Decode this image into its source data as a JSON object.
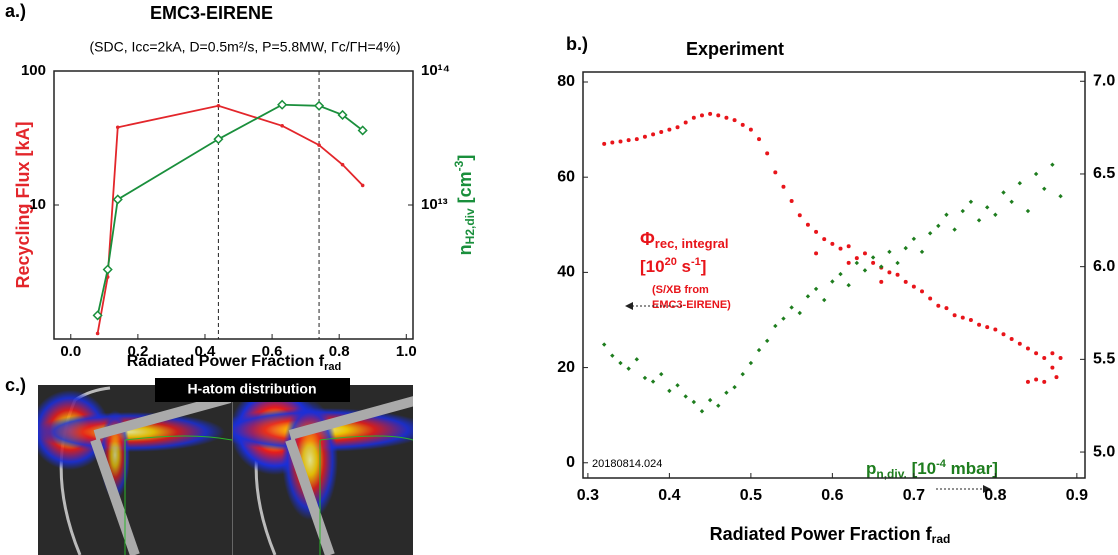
{
  "chart_data": [
    {
      "type": "line",
      "panel": "a.)",
      "title": "EMC3-EIRENE",
      "subtitle": "(SDC, Icc=2kA, D=0.5m²/s, P=5.8MW, Γc/ΓH=4%)",
      "xlabel": [
        "Radiated Power Fraction f",
        "rad"
      ],
      "ylabel": "Recycling Flux [kA]",
      "y2label": [
        "n",
        "H2,div",
        " [cm",
        "-3",
        "]"
      ],
      "x": [
        0.08,
        0.11,
        0.14,
        0.44,
        0.63,
        0.74,
        0.81,
        0.87
      ],
      "series": [
        {
          "color": "#e3262b",
          "marker": "circle",
          "values": [
            1.1,
            2.9,
            38,
            55,
            39,
            28,
            20,
            14
          ]
        },
        {
          "color": "#1a8f3c",
          "marker": "diamond",
          "axis": "y2",
          "values": [
            1500000000000.0,
            3300000000000.0,
            11000000000000.0,
            31000000000000.0,
            56000000000000.0,
            55000000000000.0,
            47000000000000.0,
            36000000000000.0
          ]
        }
      ],
      "xlim": [
        -0.05,
        1.02
      ],
      "xticks": [
        {
          "value": 0,
          "label": "0.0"
        },
        0.2,
        0.4,
        0.6,
        0.8,
        {
          "value": 1,
          "label": "1.0"
        }
      ],
      "ylim": [
        1,
        100
      ],
      "yscale": "log",
      "yticks": [
        10,
        100
      ],
      "y2lim": [
        1000000000000.0,
        100000000000000.0
      ],
      "y2scale": "log",
      "y2ticks": [
        {
          "value": 10000000000000.0,
          "label": "10¹³"
        },
        {
          "value": 100000000000000.0,
          "label": "10¹⁴"
        }
      ],
      "vlines": [
        0.44,
        0.74
      ]
    },
    {
      "type": "scatter",
      "panel": "b.)",
      "title": "Experiment",
      "xlabel": [
        "Radiated Power Fraction f",
        "rad"
      ],
      "shot": "20180814.024",
      "annotation_red": [
        [
          "Φ",
          "rec, integral"
        ],
        [
          "[10",
          "20",
          " s",
          "-1",
          "]"
        ],
        "(S/XB from",
        "EMC3-EIRENE)"
      ],
      "annotation_green": [
        "p",
        "n,div.",
        " [10",
        "-4",
        " mbar]"
      ],
      "series": [
        {
          "color": "#e8141a",
          "x": [
            0.32,
            0.33,
            0.34,
            0.35,
            0.36,
            0.37,
            0.38,
            0.39,
            0.4,
            0.41,
            0.42,
            0.43,
            0.44,
            0.45,
            0.46,
            0.47,
            0.48,
            0.49,
            0.5,
            0.51,
            0.52,
            0.53,
            0.54,
            0.55,
            0.56,
            0.57,
            0.58,
            0.59,
            0.6,
            0.61,
            0.62,
            0.63,
            0.64,
            0.65,
            0.66,
            0.67,
            0.68,
            0.69,
            0.7,
            0.71,
            0.72,
            0.73,
            0.74,
            0.75,
            0.76,
            0.77,
            0.78,
            0.79,
            0.8,
            0.81,
            0.82,
            0.83,
            0.84,
            0.85,
            0.86,
            0.87,
            0.875,
            0.88,
            0.87,
            0.84,
            0.85,
            0.86,
            0.58,
            0.62,
            0.66
          ],
          "values": [
            67,
            67.3,
            67.5,
            67.8,
            68,
            68.5,
            69,
            69.5,
            70,
            70.5,
            71.5,
            72.5,
            73,
            73.3,
            73,
            72.5,
            72,
            71,
            70,
            68,
            65,
            61,
            58,
            55,
            52,
            50,
            48.5,
            47,
            46,
            45,
            45.5,
            43,
            44,
            42,
            41,
            40,
            39.5,
            38,
            37,
            36,
            34.5,
            33,
            32.5,
            31,
            30.5,
            30,
            29,
            28.5,
            28,
            27,
            26,
            25,
            24,
            23,
            22,
            20,
            18,
            22,
            23,
            17,
            17.5,
            17,
            44,
            42,
            38
          ]
        },
        {
          "color": "#1e7d1e",
          "axis": "y2",
          "x": [
            0.32,
            0.33,
            0.34,
            0.35,
            0.36,
            0.37,
            0.38,
            0.39,
            0.4,
            0.41,
            0.42,
            0.43,
            0.44,
            0.45,
            0.46,
            0.47,
            0.48,
            0.49,
            0.5,
            0.51,
            0.52,
            0.53,
            0.54,
            0.55,
            0.56,
            0.57,
            0.58,
            0.59,
            0.6,
            0.61,
            0.62,
            0.63,
            0.64,
            0.65,
            0.66,
            0.67,
            0.68,
            0.69,
            0.7,
            0.71,
            0.72,
            0.73,
            0.74,
            0.75,
            0.76,
            0.77,
            0.78,
            0.79,
            0.8,
            0.81,
            0.82,
            0.83,
            0.84,
            0.85,
            0.86,
            0.87,
            0.88
          ],
          "values": [
            5.58,
            5.52,
            5.48,
            5.45,
            5.5,
            5.4,
            5.38,
            5.42,
            5.33,
            5.36,
            5.3,
            5.27,
            5.22,
            5.28,
            5.25,
            5.32,
            5.35,
            5.42,
            5.48,
            5.55,
            5.6,
            5.68,
            5.72,
            5.78,
            5.75,
            5.84,
            5.88,
            5.82,
            5.92,
            5.96,
            5.9,
            6.02,
            5.98,
            6.05,
            6.0,
            6.08,
            6.02,
            6.1,
            6.15,
            6.08,
            6.18,
            6.22,
            6.28,
            6.2,
            6.3,
            6.35,
            6.25,
            6.32,
            6.28,
            6.4,
            6.35,
            6.45,
            6.3,
            6.5,
            6.42,
            6.55,
            6.38
          ]
        }
      ],
      "xlim": [
        0.294,
        0.91
      ],
      "xticks": [
        0.3,
        0.4,
        0.5,
        0.6,
        0.7,
        0.8,
        0.9
      ],
      "ylim": [
        -3.2,
        82.1
      ],
      "yticks": [
        0,
        20,
        40,
        60,
        80
      ],
      "y2lim": [
        4.86,
        7.05
      ],
      "y2ticks": [
        {
          "value": 5,
          "label": "5.0"
        },
        5.5,
        {
          "value": 6,
          "label": "6.0"
        },
        6.5,
        {
          "value": 7,
          "label": "7.0"
        }
      ]
    }
  ],
  "panel_c": {
    "label": "c.)",
    "title": "H-atom distribution"
  }
}
